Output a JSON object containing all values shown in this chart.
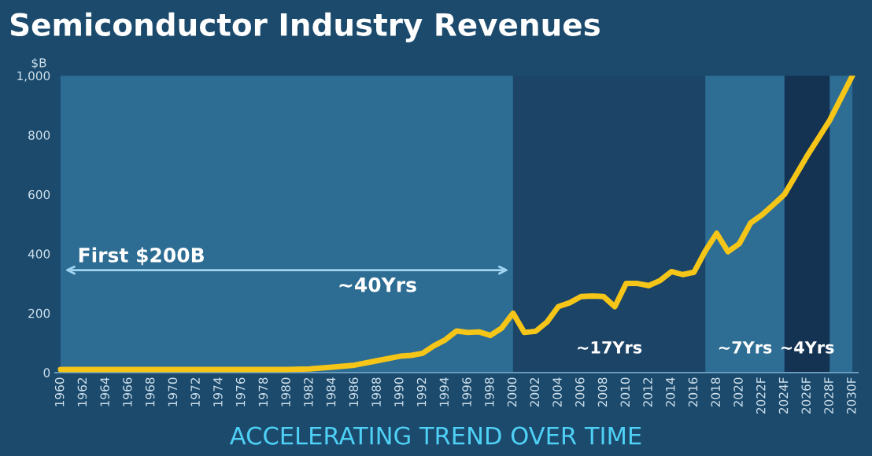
{
  "chart_data": {
    "type": "line",
    "title": "Semiconductor Industry Revenues",
    "ylabel": "$B",
    "annotations": [
      "First $200B",
      "ACCELERATING TREND OVER TIME"
    ],
    "x": [
      1960,
      1962,
      1964,
      1966,
      1968,
      1970,
      1972,
      1974,
      1976,
      1978,
      1980,
      1982,
      1984,
      1986,
      1988,
      1990,
      1991,
      1992,
      1993,
      1994,
      1995,
      1996,
      1997,
      1998,
      1999,
      2000,
      2001,
      2002,
      2003,
      2004,
      2005,
      2006,
      2007,
      2008,
      2009,
      2010,
      2011,
      2012,
      2013,
      2014,
      2015,
      2016,
      2017,
      2018,
      2019,
      2020,
      2021,
      2022,
      2023,
      2024,
      2025,
      2026,
      2027,
      2028,
      2029,
      2030
    ],
    "series": [
      {
        "color": "#f5c518",
        "values": [
          10,
          10,
          10,
          10,
          10,
          10,
          10,
          10,
          10,
          10,
          10,
          12,
          18,
          25,
          40,
          55,
          58,
          65,
          90,
          110,
          140,
          135,
          137,
          125,
          150,
          200,
          135,
          139,
          170,
          222,
          235,
          256,
          258,
          256,
          222,
          300,
          300,
          293,
          310,
          340,
          330,
          338,
          410,
          469,
          407,
          434,
          504,
          531,
          565,
          600,
          665,
          730,
          790,
          850,
          925,
          1000
        ]
      }
    ],
    "xlim": [
      1959.5,
      2030.5
    ],
    "ylim": [
      0,
      1000
    ],
    "xticks": [
      1960,
      1962,
      1964,
      1966,
      1968,
      1970,
      1972,
      1974,
      1976,
      1978,
      1980,
      1982,
      1984,
      1986,
      1988,
      1990,
      1992,
      1994,
      1996,
      1998,
      2000,
      2002,
      2004,
      2006,
      2008,
      2010,
      2012,
      2014,
      2016,
      2018,
      2020,
      {
        "value": 2022,
        "label": "2022F"
      },
      {
        "value": 2024,
        "label": "2024F"
      },
      {
        "value": 2026,
        "label": "2026F"
      },
      {
        "value": 2028,
        "label": "2028F"
      },
      {
        "value": 2030,
        "label": "2030F"
      }
    ],
    "yticks": [
      0,
      200,
      400,
      600,
      800,
      {
        "value": 1000,
        "label": "1,000"
      }
    ],
    "bands": [
      {
        "axis": "x",
        "from": 1960,
        "to": 2000,
        "label": "~40Yrs",
        "color": "#2d6d93"
      },
      {
        "axis": "x",
        "from": 2000,
        "to": 2017,
        "label": "~17Yrs",
        "color": "#1c4467"
      },
      {
        "axis": "x",
        "from": 2017,
        "to": 2024,
        "label": "~7Yrs",
        "color": "#2e6e94"
      },
      {
        "axis": "x",
        "from": 2024,
        "to": 2028,
        "label": "~4Yrs",
        "color": "#143252"
      },
      {
        "axis": "x",
        "from": 2028,
        "to": 2030,
        "label": null,
        "color": "#2e6e94"
      }
    ],
    "grid": false,
    "marker": "none",
    "line_style": "solid"
  }
}
